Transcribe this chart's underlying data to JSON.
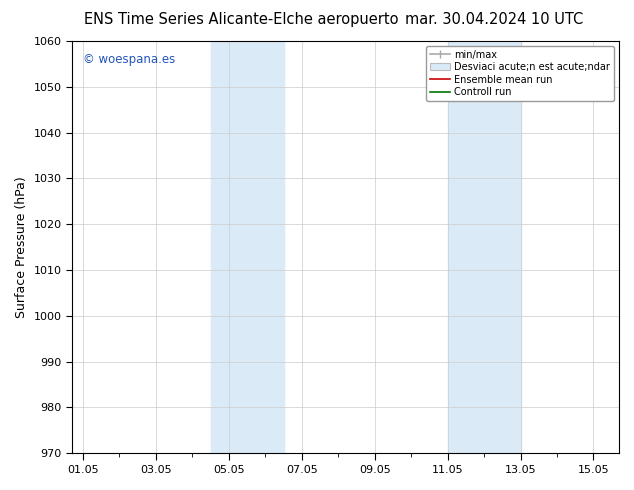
{
  "title_left": "ENS Time Series Alicante-Elche aeropuerto",
  "title_right": "mar. 30.04.2024 10 UTC",
  "ylabel": "Surface Pressure (hPa)",
  "ylim": [
    970,
    1060
  ],
  "yticks": [
    970,
    980,
    990,
    1000,
    1010,
    1020,
    1030,
    1040,
    1050,
    1060
  ],
  "xtick_labels": [
    "01.05",
    "03.05",
    "05.05",
    "07.05",
    "09.05",
    "11.05",
    "13.05",
    "15.05"
  ],
  "shaded_regions": [
    {
      "x0": "2024-05-04",
      "x1": "2024-05-06",
      "color": "#daeaf7"
    },
    {
      "x0": "2024-05-11",
      "x1": "2024-05-13",
      "color": "#daeaf7"
    }
  ],
  "legend_label_minmax": "min/max",
  "legend_label_std": "Desviaci acute;n est acute;ndar",
  "legend_label_mean": "Ensemble mean run",
  "legend_label_ctrl": "Controll run",
  "watermark": "© woespana.es",
  "watermark_color": "#2255bb",
  "bg_color": "#ffffff",
  "plot_bg_color": "#ffffff",
  "title_fontsize": 10.5,
  "axis_label_fontsize": 9,
  "tick_fontsize": 8,
  "grid_color": "#cccccc",
  "border_color": "#000000",
  "xstart": "2024-05-01",
  "xend": "2024-05-15 12:00"
}
